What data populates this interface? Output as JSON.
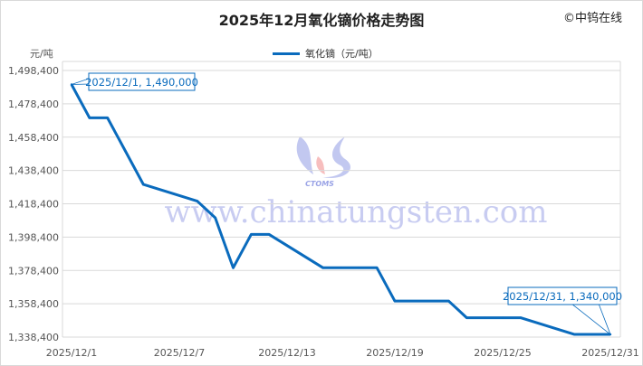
{
  "copyright": "©中钨在线",
  "colors": {
    "line": "#0a6bbd",
    "grid": "#d9d9d9",
    "watermark": "#9aa3e6"
  },
  "watermark": {
    "text": "www.chinatungsten.com",
    "logo_text": "CTOMS"
  },
  "chart_data": {
    "type": "line",
    "title": "2025年12月氧化镝价格走势图",
    "ylabel": "元/吨",
    "xlabel": "",
    "legend": "top",
    "grid": true,
    "ylim": [
      1338400,
      1498400
    ],
    "yticks": [
      "1,338,400",
      "1,358,400",
      "1,378,400",
      "1,398,400",
      "1,418,400",
      "1,438,400",
      "1,458,400",
      "1,478,400",
      "1,498,400"
    ],
    "xlim": [
      "2025-12-01",
      "2025-12-31"
    ],
    "xticks": [
      "2025/12/1",
      "2025/12/7",
      "2025/12/13",
      "2025/12/19",
      "2025/12/25",
      "2025/12/31"
    ],
    "series": [
      {
        "name": "氧化镝（元/吨）",
        "points": [
          [
            "2025-12-01",
            1490000
          ],
          [
            "2025-12-02",
            1470000
          ],
          [
            "2025-12-03",
            1470000
          ],
          [
            "2025-12-04",
            1450000
          ],
          [
            "2025-12-05",
            1430000
          ],
          [
            "2025-12-08",
            1420000
          ],
          [
            "2025-12-09",
            1410000
          ],
          [
            "2025-12-10",
            1380000
          ],
          [
            "2025-12-11",
            1400000
          ],
          [
            "2025-12-12",
            1400000
          ],
          [
            "2025-12-15",
            1380000
          ],
          [
            "2025-12-16",
            1380000
          ],
          [
            "2025-12-17",
            1380000
          ],
          [
            "2025-12-18",
            1380000
          ],
          [
            "2025-12-19",
            1360000
          ],
          [
            "2025-12-22",
            1360000
          ],
          [
            "2025-12-23",
            1350000
          ],
          [
            "2025-12-24",
            1350000
          ],
          [
            "2025-12-25",
            1350000
          ],
          [
            "2025-12-26",
            1350000
          ],
          [
            "2025-12-29",
            1340000
          ],
          [
            "2025-12-30",
            1340000
          ],
          [
            "2025-12-31",
            1340000
          ]
        ]
      }
    ],
    "annotations": [
      "2025/12/1, 1,490,000",
      "2025/12/31, 1,340,000"
    ]
  }
}
